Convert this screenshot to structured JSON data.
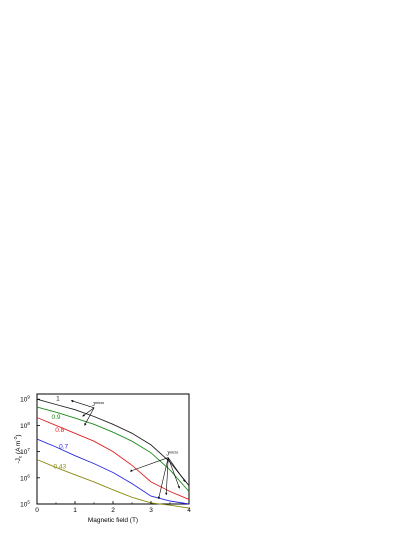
{
  "chart_data": {
    "type": "line",
    "title": "",
    "xlabel": "Magnetic field (T)",
    "ylabel": "J_c (A m^-2)",
    "ylabel_main": "J",
    "ylabel_sub": "c",
    "ylabel_unit": "(A m",
    "ylabel_unit_sup": "-2",
    "ylabel_unit_close": ")",
    "xlim": [
      0,
      4
    ],
    "ylim_log10": [
      5,
      9.2
    ],
    "y_scale": "log",
    "xticks": [
      0,
      1,
      2,
      3,
      4
    ],
    "yticks": [
      {
        "base": "10",
        "exp": "9",
        "value": 1000000000
      },
      {
        "base": "10",
        "exp": "8",
        "value": 100000000
      },
      {
        "base": "10",
        "exp": "7",
        "value": 10000000
      },
      {
        "base": "10",
        "exp": "6",
        "value": 1000000
      },
      {
        "base": "10",
        "exp": "5",
        "value": 100000
      }
    ],
    "grid": false,
    "series": [
      {
        "name": "1",
        "color": "#222222",
        "x": [
          0,
          0.5,
          1,
          1.5,
          2,
          2.5,
          3,
          3.5,
          4
        ],
        "y": [
          1000000000,
          630000000,
          400000000,
          220000000,
          110000000,
          50000000,
          18000000,
          4000000,
          500000
        ]
      },
      {
        "name": "0.9",
        "color": "#1a8a1a",
        "x": [
          0,
          0.5,
          1,
          1.5,
          2,
          2.5,
          3,
          3.5,
          4
        ],
        "y": [
          500000000,
          320000000,
          190000000,
          110000000,
          55000000,
          25000000,
          9000000,
          2000000,
          300000
        ]
      },
      {
        "name": "0.8",
        "color": "#e02020",
        "x": [
          0,
          0.5,
          1,
          1.5,
          2,
          2.5,
          3,
          3.5,
          4
        ],
        "y": [
          200000000,
          100000000,
          50000000,
          25000000,
          10000000,
          3000000,
          700000,
          300000,
          150000
        ]
      },
      {
        "name": "0.7",
        "color": "#2a2ae0",
        "x": [
          0,
          0.5,
          1,
          1.5,
          2,
          2.5,
          3,
          3.5,
          4
        ],
        "y": [
          30000000,
          15000000,
          7000000,
          3500000,
          1600000,
          600000,
          200000,
          130000,
          100000
        ]
      },
      {
        "name": "0.43",
        "color": "#8a8a10",
        "x": [
          0,
          0.5,
          1,
          1.5,
          2,
          2.5,
          3,
          3.5,
          4
        ],
        "y": [
          5000000,
          2500000,
          1300000,
          700000,
          350000,
          180000,
          110000,
          90000,
          70000
        ]
      }
    ],
    "annotations": [
      {
        "label": "J",
        "sup": "micro",
        "position": "upper-left",
        "x": 1.45,
        "y_log10": 8.75
      },
      {
        "label": "J",
        "sup": "micro",
        "position": "right",
        "x": 3.4,
        "y_log10": 6.85
      }
    ]
  }
}
